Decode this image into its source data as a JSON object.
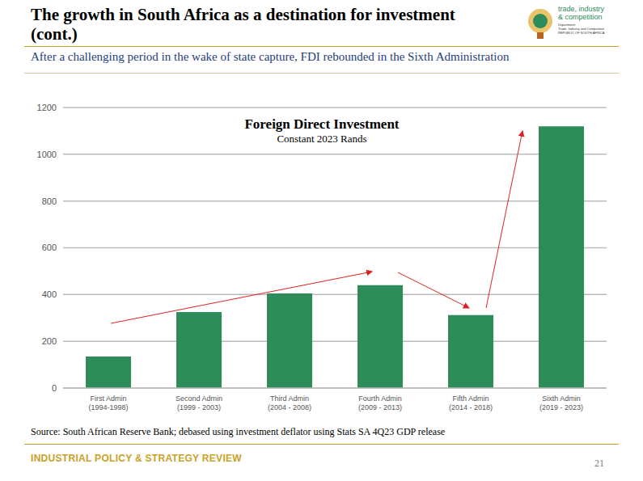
{
  "header": {
    "title": "The growth in South Africa as a destination for investment (cont.)",
    "subtitle": "After a challenging period in the wake of state capture, FDI rebounded in the Sixth Administration",
    "logo": [
      "trade, industry",
      "& competition",
      "Department:",
      "Trade, Industry and Competition",
      "REPUBLIC OF SOUTH AFRICA"
    ]
  },
  "chart_data": {
    "type": "bar",
    "title": "Foreign Direct Investment",
    "subtitle": "Constant 2023 Rands",
    "categories": [
      "First Admin (1994-1998)",
      "Second Admin (1999 - 2003)",
      "Third Admin (2004 - 2008)",
      "Fourth Admin (2009 - 2013)",
      "Fifth Admin (2014 - 2018)",
      "Sixth Admin (2019 - 2023)"
    ],
    "values": [
      135,
      325,
      405,
      440,
      312,
      1120
    ],
    "color": "#2e8b5a",
    "ylim": [
      0,
      1200
    ],
    "yticks": [
      0,
      200,
      400,
      600,
      800,
      1000,
      1200
    ],
    "grid": true
  },
  "source": "Source: South African Reserve Bank; debased using investment deflator using Stats SA 4Q23 GDP release",
  "footer": "INDUSTRIAL POLICY & STRATEGY REVIEW",
  "page": "21"
}
